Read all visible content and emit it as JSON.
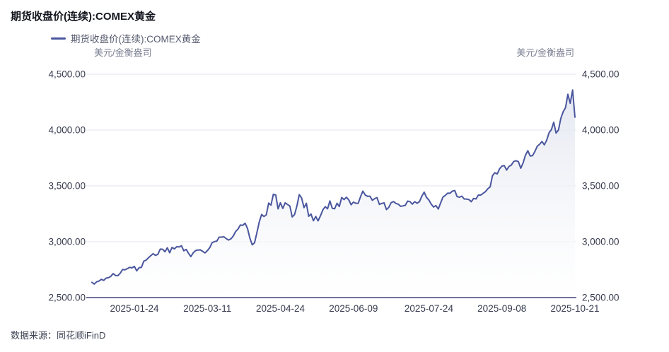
{
  "title": "期货收盘价(连续):COMEX黄金",
  "legend": {
    "label": "期货收盘价(连续):COMEX黄金"
  },
  "unit_left": "美元/金衡盎司",
  "unit_right": "美元/金衡盎司",
  "source": "数据来源：同花顺iFinD",
  "colors": {
    "line": "#4a569e",
    "area_top": "#e4e7f1",
    "area_bottom": "#ffffff",
    "grid": "#e3e5ef",
    "axis": "#3f4779",
    "tick_text": "#363b4d",
    "unit_text": "#7b8093",
    "legend_text": "#565b6e",
    "title_text": "#14161f",
    "source_text": "#3f4454"
  },
  "chart_data": {
    "type": "line",
    "title": "期货收盘价(连续):COMEX黄金",
    "ylabel": "美元/金衡盎司",
    "ylim": [
      2500,
      4500
    ],
    "grid": true,
    "legend_position": "top-left",
    "y_ticks": [
      {
        "value": 4500,
        "label": "4,500.00"
      },
      {
        "value": 4000,
        "label": "4,000.00"
      },
      {
        "value": 3500,
        "label": "3,500.00"
      },
      {
        "value": 3000,
        "label": "3,000.00"
      },
      {
        "value": 2500,
        "label": "2,500.00"
      }
    ],
    "x_tick_labels": [
      "2025-01-24",
      "2025-03-11",
      "2025-04-24",
      "2025-06-09",
      "2025-07-24",
      "2025-09-08",
      "2025-10-21"
    ],
    "series": [
      {
        "name": "期货收盘价(连续):COMEX黄金",
        "dates": [
          "2024-12-27",
          "2024-12-30",
          "2024-12-31",
          "2025-01-02",
          "2025-01-03",
          "2025-01-06",
          "2025-01-07",
          "2025-01-08",
          "2025-01-09",
          "2025-01-10",
          "2025-01-13",
          "2025-01-14",
          "2025-01-15",
          "2025-01-16",
          "2025-01-17",
          "2025-01-21",
          "2025-01-22",
          "2025-01-23",
          "2025-01-24",
          "2025-01-27",
          "2025-01-28",
          "2025-01-29",
          "2025-01-30",
          "2025-01-31",
          "2025-02-03",
          "2025-02-04",
          "2025-02-05",
          "2025-02-06",
          "2025-02-07",
          "2025-02-10",
          "2025-02-11",
          "2025-02-12",
          "2025-02-13",
          "2025-02-14",
          "2025-02-18",
          "2025-02-19",
          "2025-02-20",
          "2025-02-21",
          "2025-02-24",
          "2025-02-25",
          "2025-02-26",
          "2025-02-27",
          "2025-02-28",
          "2025-03-03",
          "2025-03-04",
          "2025-03-05",
          "2025-03-06",
          "2025-03-07",
          "2025-03-10",
          "2025-03-11",
          "2025-03-12",
          "2025-03-13",
          "2025-03-14",
          "2025-03-17",
          "2025-03-18",
          "2025-03-19",
          "2025-03-20",
          "2025-03-21",
          "2025-03-24",
          "2025-03-25",
          "2025-03-26",
          "2025-03-27",
          "2025-03-28",
          "2025-03-31",
          "2025-04-01",
          "2025-04-02",
          "2025-04-03",
          "2025-04-04",
          "2025-04-07",
          "2025-04-08",
          "2025-04-09",
          "2025-04-10",
          "2025-04-11",
          "2025-04-14",
          "2025-04-15",
          "2025-04-16",
          "2025-04-17",
          "2025-04-21",
          "2025-04-22",
          "2025-04-23",
          "2025-04-24",
          "2025-04-25",
          "2025-04-28",
          "2025-04-29",
          "2025-04-30",
          "2025-05-01",
          "2025-05-02",
          "2025-05-05",
          "2025-05-06",
          "2025-05-07",
          "2025-05-08",
          "2025-05-09",
          "2025-05-12",
          "2025-05-13",
          "2025-05-14",
          "2025-05-15",
          "2025-05-16",
          "2025-05-19",
          "2025-05-20",
          "2025-05-21",
          "2025-05-22",
          "2025-05-23",
          "2025-05-27",
          "2025-05-28",
          "2025-05-29",
          "2025-05-30",
          "2025-06-02",
          "2025-06-03",
          "2025-06-04",
          "2025-06-05",
          "2025-06-06",
          "2025-06-09",
          "2025-06-10",
          "2025-06-11",
          "2025-06-12",
          "2025-06-13",
          "2025-06-16",
          "2025-06-17",
          "2025-06-18",
          "2025-06-19",
          "2025-06-20",
          "2025-06-23",
          "2025-06-24",
          "2025-06-25",
          "2025-06-26",
          "2025-06-27",
          "2025-06-30",
          "2025-07-01",
          "2025-07-02",
          "2025-07-03",
          "2025-07-07",
          "2025-07-08",
          "2025-07-09",
          "2025-07-10",
          "2025-07-11",
          "2025-07-14",
          "2025-07-15",
          "2025-07-16",
          "2025-07-17",
          "2025-07-18",
          "2025-07-21",
          "2025-07-22",
          "2025-07-23",
          "2025-07-24",
          "2025-07-25",
          "2025-07-28",
          "2025-07-29",
          "2025-07-30",
          "2025-07-31",
          "2025-08-01",
          "2025-08-04",
          "2025-08-05",
          "2025-08-06",
          "2025-08-07",
          "2025-08-08",
          "2025-08-11",
          "2025-08-12",
          "2025-08-13",
          "2025-08-14",
          "2025-08-15",
          "2025-08-18",
          "2025-08-19",
          "2025-08-20",
          "2025-08-21",
          "2025-08-22",
          "2025-08-25",
          "2025-08-26",
          "2025-08-27",
          "2025-08-28",
          "2025-08-29",
          "2025-09-02",
          "2025-09-03",
          "2025-09-04",
          "2025-09-05",
          "2025-09-08",
          "2025-09-09",
          "2025-09-10",
          "2025-09-11",
          "2025-09-12",
          "2025-09-15",
          "2025-09-16",
          "2025-09-17",
          "2025-09-18",
          "2025-09-19",
          "2025-09-22",
          "2025-09-23",
          "2025-09-24",
          "2025-09-25",
          "2025-09-26",
          "2025-09-29",
          "2025-09-30",
          "2025-10-01",
          "2025-10-02",
          "2025-10-03",
          "2025-10-06",
          "2025-10-07",
          "2025-10-08",
          "2025-10-09",
          "2025-10-10",
          "2025-10-13",
          "2025-10-14",
          "2025-10-15",
          "2025-10-16",
          "2025-10-17",
          "2025-10-20",
          "2025-10-21"
        ],
        "values": [
          2637,
          2621,
          2641,
          2648,
          2663,
          2654,
          2674,
          2678,
          2690,
          2715,
          2698,
          2696,
          2718,
          2751,
          2749,
          2759,
          2771,
          2766,
          2779,
          2739,
          2767,
          2770,
          2826,
          2835,
          2857,
          2876,
          2893,
          2877,
          2888,
          2934,
          2933,
          2910,
          2946,
          2901,
          2949,
          2936,
          2956,
          2953,
          2964,
          2919,
          2931,
          2896,
          2867,
          2901,
          2921,
          2926,
          2927,
          2914,
          2900,
          2921,
          2947,
          2991,
          3001,
          3006,
          3041,
          3041,
          3044,
          3028,
          3015,
          3026,
          3051,
          3091,
          3114,
          3150,
          3146,
          3166,
          3121,
          3035,
          2973,
          2990,
          3079,
          3177,
          3244,
          3226,
          3240,
          3346,
          3328,
          3425,
          3419,
          3294,
          3349,
          3298,
          3348,
          3334,
          3319,
          3222,
          3243,
          3322,
          3422,
          3392,
          3306,
          3344,
          3228,
          3248,
          3188,
          3226,
          3187,
          3233,
          3285,
          3314,
          3295,
          3365,
          3300,
          3295,
          3344,
          3315,
          3397,
          3377,
          3399,
          3375,
          3331,
          3355,
          3344,
          3344,
          3403,
          3453,
          3418,
          3407,
          3408,
          3371,
          3386,
          3395,
          3334,
          3343,
          3348,
          3288,
          3308,
          3350,
          3360,
          3343,
          3337,
          3317,
          3321,
          3326,
          3364,
          3359,
          3337,
          3359,
          3345,
          3358,
          3407,
          3444,
          3397,
          3374,
          3336,
          3311,
          3324,
          3293,
          3348,
          3400,
          3416,
          3435,
          3434,
          3454,
          3458,
          3404,
          3399,
          3408,
          3383,
          3382,
          3377,
          3358,
          3388,
          3383,
          3418,
          3418,
          3433,
          3448,
          3474,
          3492,
          3592,
          3618,
          3607,
          3653,
          3677,
          3682,
          3642,
          3674,
          3686,
          3719,
          3725,
          3718,
          3658,
          3706,
          3775,
          3815,
          3768,
          3771,
          3809,
          3855,
          3873,
          3898,
          3868,
          3909,
          3976,
          4004,
          4070,
          3973,
          4000,
          4104,
          4163,
          4201,
          4320,
          4240,
          4359,
          4115
        ]
      }
    ]
  }
}
